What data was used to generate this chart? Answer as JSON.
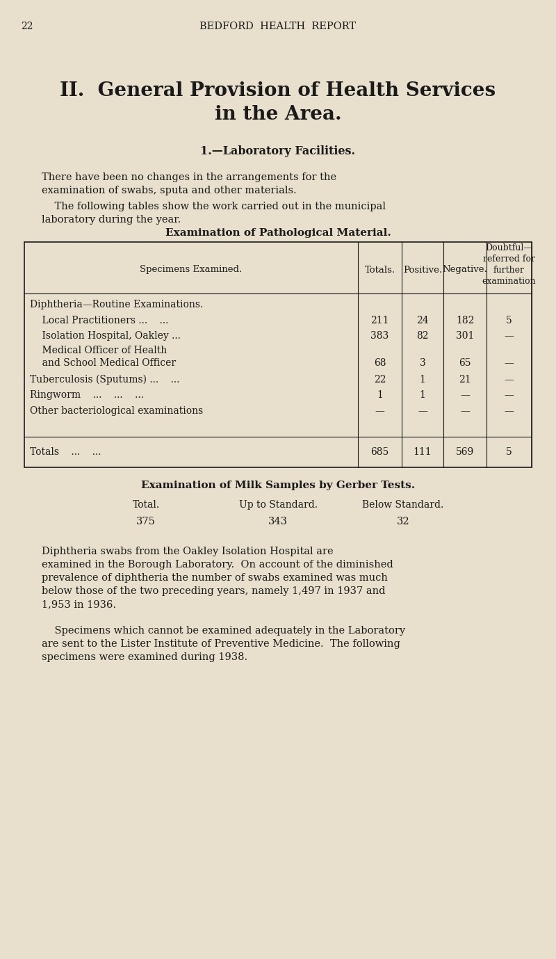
{
  "bg_color": "#e8e0cc",
  "text_color": "#1a1a1a",
  "page_number": "22",
  "header": "BEDFORD  HEALTH  REPORT",
  "title_line1": "II.  General Provision of Health Services",
  "title_line2": "in the Area.",
  "section_heading": "1.—Laboratory Facilities.",
  "para1_line1": "There have been no changes in the arrangements for the",
  "para1_line2": "examination of swabs, sputa and other materials.",
  "para2_line1": "    The following tables show the work carried out in the municipal",
  "para2_line2": "laboratory during the year.",
  "table1_title": "Examination of Pathological Material.",
  "col_header_0": "Specimens Examined.",
  "col_header_1": "Totals.",
  "col_header_2": "Positive.",
  "col_header_3": "Negative.",
  "col_header_4a": "Doubtful—",
  "col_header_4b": "referred for",
  "col_header_4c": "further",
  "col_header_4d": "examination",
  "row_labels": [
    "Diphtheria—Routine Examinations.",
    "    Local Practitioners ...    ...",
    "    Isolation Hospital, Oakley ...",
    "    Medical Officer of Health",
    "    and School Medical Officer",
    "Tuberculosis (Sputums) ...    ...",
    "Ringworm    ...    ...    ...",
    "Other bacteriological examinations"
  ],
  "row_vals": [
    [
      "",
      "",
      "",
      ""
    ],
    [
      "211",
      "24",
      "182",
      "5"
    ],
    [
      "383",
      "82",
      "301",
      "—"
    ],
    [
      "",
      "",
      "",
      ""
    ],
    [
      "68",
      "3",
      "65",
      "—"
    ],
    [
      "22",
      "1",
      "21",
      "—"
    ],
    [
      "1",
      "1",
      "—",
      "—"
    ],
    [
      "—",
      "—",
      "—",
      "—"
    ]
  ],
  "totals_label": "Totals    ...    ...",
  "totals_vals": [
    "685",
    "111",
    "569",
    "5"
  ],
  "table2_title": "Examination of Milk Samples by Gerber Tests.",
  "table2_col_headers": [
    "Total.",
    "Up to Standard.",
    "Below Standard."
  ],
  "table2_row": [
    "375",
    "343",
    "32"
  ],
  "para3_lines": [
    "Diphtheria swabs from the Oakley Isolation Hospital are",
    "examined in the Borough Laboratory.  On account of the diminished",
    "prevalence of diphtheria the number of swabs examined was much",
    "below those of the two preceding years, namely 1,497 in 1937 and",
    "1,953 in 1936."
  ],
  "para4_lines": [
    "    Specimens which cannot be examined adequately in the Laboratory",
    "are sent to the Lister Institute of Preventive Medicine.  The following",
    "specimens were examined during 1938."
  ]
}
